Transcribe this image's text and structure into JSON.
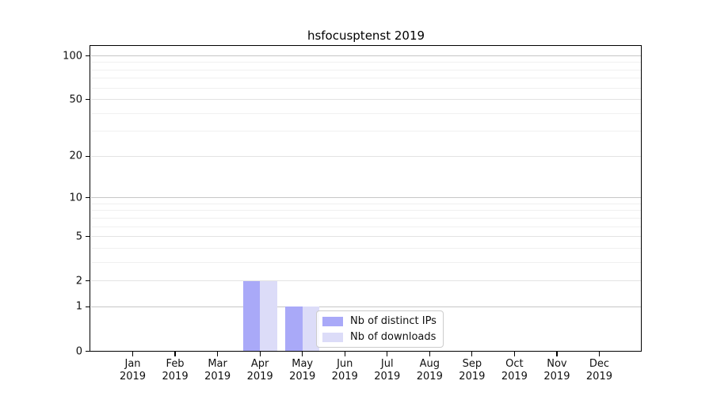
{
  "chart_data": {
    "type": "bar",
    "title": "hsfocusptenst 2019",
    "categories": [
      {
        "month": "Jan",
        "year": "2019"
      },
      {
        "month": "Feb",
        "year": "2019"
      },
      {
        "month": "Mar",
        "year": "2019"
      },
      {
        "month": "Apr",
        "year": "2019"
      },
      {
        "month": "May",
        "year": "2019"
      },
      {
        "month": "Jun",
        "year": "2019"
      },
      {
        "month": "Jul",
        "year": "2019"
      },
      {
        "month": "Aug",
        "year": "2019"
      },
      {
        "month": "Sep",
        "year": "2019"
      },
      {
        "month": "Oct",
        "year": "2019"
      },
      {
        "month": "Nov",
        "year": "2019"
      },
      {
        "month": "Dec",
        "year": "2019"
      }
    ],
    "series": [
      {
        "name": "Nb of distinct IPs",
        "color": "#a9a9f8",
        "values": [
          0,
          0,
          0,
          2,
          1,
          0,
          0,
          0,
          0,
          0,
          0,
          0
        ]
      },
      {
        "name": "Nb of downloads",
        "color": "#dcdcf8",
        "values": [
          0,
          0,
          0,
          2,
          1,
          0,
          0,
          0,
          0,
          0,
          0,
          0
        ]
      }
    ],
    "y_ticks": [
      0,
      1,
      2,
      5,
      10,
      20,
      50,
      100
    ],
    "y_scale": "log1p",
    "ylim": [
      0,
      116
    ],
    "xlabel": "",
    "ylabel": "",
    "grid": "horizontal",
    "legend_position": "lower-right-inside"
  }
}
